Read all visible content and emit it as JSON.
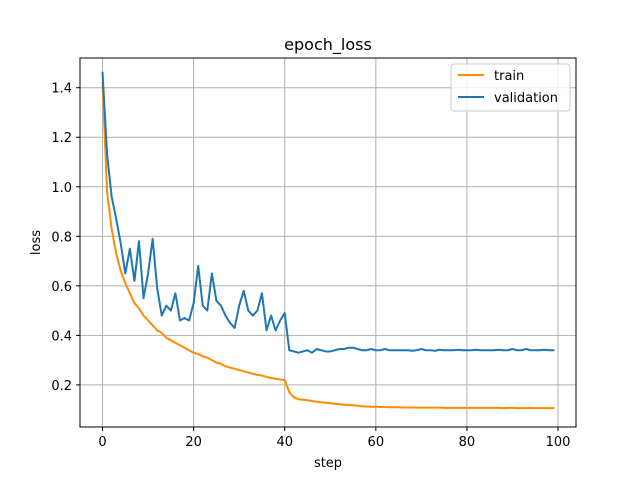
{
  "chart_data": {
    "type": "line",
    "title": "epoch_loss",
    "xlabel": "step",
    "ylabel": "loss",
    "xlim": [
      -4.95,
      103.95
    ],
    "ylim": [
      0.03,
      1.52
    ],
    "grid": true,
    "legend_position": "top-right",
    "x_ticks": [
      0,
      20,
      40,
      60,
      80,
      100
    ],
    "y_ticks": [
      0.2,
      0.4,
      0.6,
      0.8,
      1.0,
      1.2,
      1.4
    ],
    "x_tick_labels": [
      "0",
      "20",
      "40",
      "60",
      "80",
      "100"
    ],
    "y_tick_labels": [
      "0.2",
      "0.4",
      "0.6",
      "0.8",
      "1.0",
      "1.2",
      "1.4"
    ],
    "series": [
      {
        "name": "train",
        "color": "#ff8c00",
        "x": [
          0,
          1,
          2,
          3,
          4,
          5,
          6,
          7,
          8,
          9,
          10,
          11,
          12,
          13,
          14,
          15,
          16,
          17,
          18,
          19,
          20,
          21,
          22,
          23,
          24,
          25,
          26,
          27,
          28,
          29,
          30,
          31,
          32,
          33,
          34,
          35,
          36,
          37,
          38,
          39,
          40,
          41,
          42,
          43,
          44,
          45,
          46,
          47,
          48,
          49,
          50,
          51,
          52,
          53,
          54,
          55,
          56,
          57,
          58,
          59,
          60,
          61,
          62,
          63,
          64,
          65,
          66,
          67,
          68,
          69,
          70,
          71,
          72,
          73,
          74,
          75,
          76,
          77,
          78,
          79,
          80,
          81,
          82,
          83,
          84,
          85,
          86,
          87,
          88,
          89,
          90,
          91,
          92,
          93,
          94,
          95,
          96,
          97,
          98,
          99
        ],
        "values": [
          1.42,
          0.98,
          0.83,
          0.73,
          0.66,
          0.61,
          0.57,
          0.53,
          0.51,
          0.48,
          0.46,
          0.44,
          0.42,
          0.41,
          0.39,
          0.38,
          0.37,
          0.36,
          0.35,
          0.34,
          0.33,
          0.325,
          0.315,
          0.31,
          0.3,
          0.29,
          0.285,
          0.275,
          0.27,
          0.265,
          0.26,
          0.255,
          0.25,
          0.245,
          0.24,
          0.238,
          0.232,
          0.228,
          0.225,
          0.222,
          0.22,
          0.17,
          0.15,
          0.142,
          0.14,
          0.138,
          0.135,
          0.132,
          0.13,
          0.128,
          0.126,
          0.124,
          0.122,
          0.12,
          0.119,
          0.118,
          0.116,
          0.114,
          0.113,
          0.112,
          0.112,
          0.111,
          0.111,
          0.11,
          0.11,
          0.11,
          0.109,
          0.109,
          0.109,
          0.108,
          0.108,
          0.108,
          0.108,
          0.108,
          0.108,
          0.107,
          0.107,
          0.107,
          0.107,
          0.107,
          0.107,
          0.107,
          0.107,
          0.107,
          0.107,
          0.107,
          0.107,
          0.107,
          0.106,
          0.107,
          0.107,
          0.106,
          0.106,
          0.106,
          0.107,
          0.106,
          0.106,
          0.106,
          0.106,
          0.106
        ]
      },
      {
        "name": "validation",
        "color": "#1f77b4",
        "x": [
          0,
          1,
          2,
          3,
          4,
          5,
          6,
          7,
          8,
          9,
          10,
          11,
          12,
          13,
          14,
          15,
          16,
          17,
          18,
          19,
          20,
          21,
          22,
          23,
          24,
          25,
          26,
          27,
          28,
          29,
          30,
          31,
          32,
          33,
          34,
          35,
          36,
          37,
          38,
          39,
          40,
          41,
          42,
          43,
          44,
          45,
          46,
          47,
          48,
          49,
          50,
          51,
          52,
          53,
          54,
          55,
          56,
          57,
          58,
          59,
          60,
          61,
          62,
          63,
          64,
          65,
          66,
          67,
          68,
          69,
          70,
          71,
          72,
          73,
          74,
          75,
          76,
          77,
          78,
          79,
          80,
          81,
          82,
          83,
          84,
          85,
          86,
          87,
          88,
          89,
          90,
          91,
          92,
          93,
          94,
          95,
          96,
          97,
          98,
          99
        ],
        "values": [
          1.46,
          1.13,
          0.96,
          0.87,
          0.77,
          0.65,
          0.75,
          0.62,
          0.78,
          0.55,
          0.65,
          0.79,
          0.59,
          0.48,
          0.52,
          0.5,
          0.57,
          0.46,
          0.47,
          0.46,
          0.53,
          0.68,
          0.52,
          0.5,
          0.65,
          0.54,
          0.52,
          0.48,
          0.45,
          0.43,
          0.52,
          0.58,
          0.5,
          0.48,
          0.5,
          0.57,
          0.42,
          0.48,
          0.42,
          0.46,
          0.49,
          0.34,
          0.335,
          0.33,
          0.335,
          0.34,
          0.33,
          0.345,
          0.34,
          0.335,
          0.335,
          0.34,
          0.345,
          0.345,
          0.35,
          0.35,
          0.345,
          0.34,
          0.34,
          0.345,
          0.34,
          0.34,
          0.345,
          0.34,
          0.34,
          0.34,
          0.34,
          0.34,
          0.338,
          0.34,
          0.345,
          0.34,
          0.34,
          0.338,
          0.342,
          0.34,
          0.34,
          0.34,
          0.342,
          0.34,
          0.34,
          0.34,
          0.342,
          0.34,
          0.34,
          0.34,
          0.34,
          0.342,
          0.34,
          0.34,
          0.345,
          0.34,
          0.34,
          0.345,
          0.34,
          0.34,
          0.34,
          0.342,
          0.34,
          0.34
        ]
      }
    ]
  }
}
